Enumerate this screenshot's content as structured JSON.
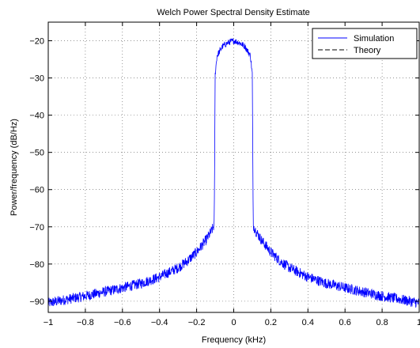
{
  "chart_data": {
    "type": "line",
    "title": "Welch Power Spectral Density Estimate",
    "xlabel": "Frequency (kHz)",
    "ylabel": "Power/frequency (dB/Hz)",
    "xlim": [
      -1,
      1
    ],
    "ylim": [
      -93,
      -15
    ],
    "xticks": [
      -1,
      -0.8,
      -0.6,
      -0.4,
      -0.2,
      0,
      0.2,
      0.4,
      0.6,
      0.8,
      1
    ],
    "xtick_labels": [
      "−1",
      "−0.8",
      "−0.6",
      "−0.4",
      "−0.2",
      "0",
      "0.2",
      "0.4",
      "0.6",
      "0.8",
      "1"
    ],
    "yticks": [
      -90,
      -80,
      -70,
      -60,
      -50,
      -40,
      -30,
      -20
    ],
    "ytick_labels": [
      "−90",
      "−80",
      "−70",
      "−60",
      "−50",
      "−40",
      "−30",
      "−20"
    ],
    "grid": true,
    "legend_position": "top-right",
    "series": [
      {
        "name": "Simulation",
        "color": "#0000ff",
        "style": "solid",
        "x": [
          -1,
          -0.9,
          -0.8,
          -0.7,
          -0.6,
          -0.5,
          -0.4,
          -0.3,
          -0.25,
          -0.2,
          -0.15,
          -0.12,
          -0.105,
          -0.1,
          -0.09,
          -0.06,
          -0.03,
          0,
          0.03,
          0.06,
          0.09,
          0.1,
          0.105,
          0.12,
          0.15,
          0.2,
          0.25,
          0.3,
          0.4,
          0.5,
          0.6,
          0.7,
          0.8,
          0.9,
          1
        ],
        "y": [
          -90.5,
          -89.5,
          -88.6,
          -87.5,
          -86.4,
          -85.2,
          -83.5,
          -81,
          -79.2,
          -76.8,
          -73.6,
          -71.2,
          -69.5,
          -29,
          -24,
          -21.5,
          -20.5,
          -20,
          -20.5,
          -21.5,
          -24,
          -29,
          -69.5,
          -71.2,
          -73.6,
          -76.8,
          -79.2,
          -81,
          -83.5,
          -85.2,
          -86.4,
          -87.5,
          -88.6,
          -89.5,
          -90.5
        ],
        "noise_band_db": 2
      },
      {
        "name": "Theory",
        "color": "#000000",
        "style": "dashed",
        "x": [],
        "y": []
      }
    ]
  }
}
